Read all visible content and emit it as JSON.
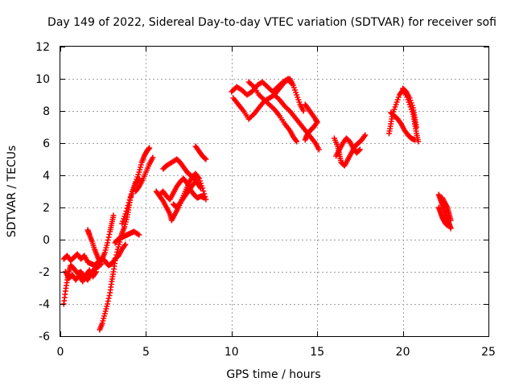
{
  "chart_data": {
    "type": "scatter",
    "title": "Day 149 of 2022, Sidereal Day-to-day VTEC variation (SDTVAR) for receiver sofi",
    "xlabel": "GPS time / hours",
    "ylabel": "SDTVAR / TECUs",
    "xlim": [
      0,
      25
    ],
    "ylim": [
      -6,
      12
    ],
    "x_ticks": [
      0,
      5,
      10,
      15,
      20,
      25
    ],
    "y_ticks": [
      -6,
      -4,
      -2,
      0,
      2,
      4,
      6,
      8,
      10,
      12
    ],
    "grid": true,
    "color": "#ff0000",
    "marker": "plus",
    "series": [
      {
        "points": [
          [
            0.2,
            -4.0
          ],
          [
            0.3,
            -3.2
          ],
          [
            0.4,
            -2.5
          ],
          [
            0.5,
            -2.0
          ],
          [
            0.6,
            -1.6
          ],
          [
            0.8,
            -1.8
          ],
          [
            1.0,
            -2.1
          ],
          [
            1.2,
            -2.0
          ],
          [
            1.4,
            -2.3
          ],
          [
            1.6,
            -2.5
          ],
          [
            1.8,
            -2.1
          ],
          [
            2.0,
            -1.8
          ],
          [
            2.2,
            -1.7
          ],
          [
            2.4,
            -1.5
          ]
        ]
      },
      {
        "points": [
          [
            0.2,
            -1.2
          ],
          [
            0.4,
            -1.0
          ],
          [
            0.6,
            -1.3
          ],
          [
            0.8,
            -1.1
          ],
          [
            1.0,
            -0.9
          ],
          [
            1.2,
            -1.2
          ],
          [
            1.4,
            -1.0
          ],
          [
            1.6,
            -1.4
          ],
          [
            1.8,
            -1.5
          ],
          [
            2.0,
            -1.6
          ],
          [
            2.2,
            -1.4
          ],
          [
            2.4,
            -1.2
          ],
          [
            2.6,
            -1.3
          ],
          [
            2.8,
            -1.6
          ],
          [
            3.0,
            -1.5
          ],
          [
            3.2,
            -1.2
          ],
          [
            3.4,
            -1.0
          ],
          [
            3.6,
            -0.6
          ],
          [
            3.8,
            -0.3
          ]
        ]
      },
      {
        "points": [
          [
            0.3,
            -2.0
          ],
          [
            0.5,
            -2.4
          ],
          [
            0.7,
            -2.2
          ],
          [
            0.9,
            -2.5
          ],
          [
            1.1,
            -2.2
          ],
          [
            1.3,
            -2.6
          ],
          [
            1.5,
            -2.2
          ],
          [
            1.7,
            -1.9
          ],
          [
            1.9,
            -2.3
          ],
          [
            2.1,
            -2.0
          ]
        ]
      },
      {
        "points": [
          [
            2.3,
            -5.6
          ],
          [
            2.45,
            -5.2
          ],
          [
            2.6,
            -4.6
          ],
          [
            2.75,
            -4.0
          ],
          [
            2.9,
            -3.3
          ],
          [
            3.0,
            -2.6
          ],
          [
            3.1,
            -2.0
          ],
          [
            3.2,
            -1.3
          ],
          [
            3.35,
            -0.6
          ],
          [
            3.5,
            0.0
          ],
          [
            3.6,
            0.4
          ],
          [
            3.75,
            0.8
          ],
          [
            3.9,
            1.4
          ],
          [
            4.0,
            2.0
          ],
          [
            4.1,
            2.6
          ],
          [
            4.25,
            3.1
          ],
          [
            4.4,
            3.6
          ],
          [
            4.6,
            4.2
          ],
          [
            4.75,
            4.8
          ],
          [
            4.9,
            5.2
          ],
          [
            5.05,
            5.5
          ],
          [
            5.2,
            5.7
          ]
        ]
      },
      {
        "points": [
          [
            1.6,
            0.6
          ],
          [
            1.7,
            0.3
          ],
          [
            1.85,
            -0.1
          ],
          [
            2.0,
            -0.6
          ],
          [
            2.15,
            -1.0
          ],
          [
            2.3,
            -1.4
          ],
          [
            2.45,
            -1.2
          ],
          [
            2.6,
            -0.8
          ],
          [
            2.75,
            -0.2
          ],
          [
            2.9,
            0.5
          ],
          [
            3.0,
            1.0
          ],
          [
            3.1,
            1.5
          ]
        ]
      },
      {
        "points": [
          [
            3.2,
            -0.2
          ],
          [
            3.35,
            0.0
          ],
          [
            3.5,
            0.1
          ],
          [
            3.7,
            0.2
          ],
          [
            3.9,
            0.3
          ],
          [
            4.1,
            0.4
          ],
          [
            4.3,
            0.5
          ],
          [
            4.6,
            0.3
          ]
        ]
      },
      {
        "points": [
          [
            3.6,
            1.0
          ],
          [
            3.8,
            1.6
          ],
          [
            4.0,
            2.3
          ],
          [
            4.2,
            3.0
          ],
          [
            4.4,
            3.5
          ],
          [
            4.6,
            3.8
          ]
        ]
      },
      {
        "points": [
          [
            4.4,
            3.0
          ],
          [
            4.6,
            3.3
          ],
          [
            4.8,
            3.7
          ],
          [
            5.0,
            4.2
          ],
          [
            5.2,
            4.7
          ],
          [
            5.4,
            5.1
          ]
        ]
      },
      {
        "points": [
          [
            5.6,
            3.0
          ],
          [
            5.8,
            2.7
          ],
          [
            6.0,
            2.4
          ],
          [
            6.2,
            2.0
          ],
          [
            6.4,
            1.6
          ],
          [
            6.5,
            1.2
          ],
          [
            6.7,
            1.6
          ],
          [
            6.9,
            2.0
          ],
          [
            7.1,
            2.5
          ],
          [
            7.3,
            3.0
          ],
          [
            7.5,
            3.5
          ],
          [
            7.7,
            3.9
          ],
          [
            7.9,
            4.1
          ],
          [
            8.1,
            3.8
          ],
          [
            8.3,
            3.2
          ],
          [
            8.5,
            2.5
          ]
        ]
      },
      {
        "points": [
          [
            5.8,
            2.8
          ],
          [
            6.0,
            3.0
          ],
          [
            6.2,
            2.7
          ],
          [
            6.4,
            2.5
          ],
          [
            6.6,
            2.9
          ],
          [
            6.8,
            3.3
          ],
          [
            7.0,
            3.6
          ],
          [
            7.2,
            3.8
          ],
          [
            7.4,
            3.5
          ],
          [
            7.6,
            3.1
          ],
          [
            7.8,
            2.8
          ],
          [
            8.0,
            2.6
          ],
          [
            8.2,
            2.7
          ],
          [
            8.4,
            2.6
          ]
        ]
      },
      {
        "points": [
          [
            6.0,
            4.4
          ],
          [
            6.2,
            4.6
          ],
          [
            6.5,
            4.8
          ],
          [
            6.8,
            5.0
          ],
          [
            7.0,
            4.8
          ],
          [
            7.2,
            4.5
          ],
          [
            7.4,
            4.2
          ],
          [
            7.6,
            4.0
          ],
          [
            7.8,
            3.8
          ],
          [
            8.0,
            3.5
          ],
          [
            8.2,
            3.2
          ]
        ]
      },
      {
        "points": [
          [
            6.6,
            2.2
          ],
          [
            6.8,
            2.0
          ],
          [
            7.0,
            2.3
          ],
          [
            7.2,
            2.6
          ],
          [
            7.4,
            2.9
          ],
          [
            7.6,
            3.2
          ],
          [
            7.8,
            3.5
          ]
        ]
      },
      {
        "points": [
          [
            7.9,
            5.8
          ],
          [
            8.1,
            5.5
          ],
          [
            8.3,
            5.2
          ],
          [
            8.5,
            5.0
          ]
        ]
      },
      {
        "points": [
          [
            10.0,
            9.2
          ],
          [
            10.3,
            9.5
          ],
          [
            10.6,
            9.3
          ],
          [
            10.9,
            9.0
          ],
          [
            11.2,
            9.2
          ],
          [
            11.5,
            9.6
          ],
          [
            11.8,
            9.8
          ],
          [
            12.1,
            9.5
          ],
          [
            12.4,
            9.2
          ],
          [
            12.7,
            9.5
          ],
          [
            13.0,
            9.8
          ],
          [
            13.3,
            10.0
          ],
          [
            13.5,
            9.7
          ]
        ]
      },
      {
        "points": [
          [
            10.1,
            8.8
          ],
          [
            10.4,
            8.4
          ],
          [
            10.7,
            8.0
          ],
          [
            11.0,
            7.5
          ],
          [
            11.3,
            7.8
          ],
          [
            11.6,
            8.2
          ],
          [
            11.9,
            8.6
          ],
          [
            12.2,
            8.8
          ],
          [
            12.5,
            9.0
          ],
          [
            12.8,
            8.7
          ],
          [
            13.1,
            8.3
          ],
          [
            13.4,
            8.0
          ],
          [
            13.7,
            7.6
          ],
          [
            14.0,
            7.2
          ],
          [
            14.3,
            6.8
          ],
          [
            14.6,
            6.4
          ],
          [
            14.9,
            6.0
          ],
          [
            15.1,
            5.6
          ]
        ]
      },
      {
        "points": [
          [
            11.0,
            9.8
          ],
          [
            11.3,
            9.5
          ],
          [
            11.6,
            9.0
          ],
          [
            11.9,
            8.7
          ],
          [
            12.2,
            8.4
          ],
          [
            12.5,
            8.1
          ],
          [
            12.8,
            7.7
          ],
          [
            13.1,
            7.2
          ],
          [
            13.4,
            6.8
          ],
          [
            13.6,
            6.4
          ],
          [
            13.8,
            6.1
          ]
        ]
      },
      {
        "points": [
          [
            12.5,
            9.0
          ],
          [
            12.8,
            9.4
          ],
          [
            13.1,
            9.8
          ],
          [
            13.4,
            10.0
          ],
          [
            13.6,
            9.6
          ],
          [
            13.8,
            9.0
          ],
          [
            14.0,
            8.4
          ],
          [
            14.2,
            8.0
          ]
        ]
      },
      {
        "points": [
          [
            14.3,
            8.4
          ],
          [
            14.5,
            8.1
          ],
          [
            14.7,
            7.8
          ],
          [
            14.9,
            7.5
          ],
          [
            15.0,
            7.3
          ],
          [
            14.8,
            7.0
          ],
          [
            14.6,
            6.8
          ],
          [
            14.4,
            6.5
          ],
          [
            14.3,
            6.2
          ]
        ]
      },
      {
        "points": [
          [
            16.0,
            6.3
          ],
          [
            16.2,
            5.8
          ],
          [
            16.3,
            5.3
          ],
          [
            16.4,
            4.8
          ],
          [
            16.6,
            4.6
          ],
          [
            16.8,
            5.0
          ],
          [
            17.0,
            5.4
          ],
          [
            17.2,
            5.8
          ],
          [
            17.4,
            6.0
          ],
          [
            17.6,
            6.2
          ],
          [
            17.8,
            6.5
          ]
        ]
      },
      {
        "points": [
          [
            16.1,
            5.2
          ],
          [
            16.3,
            5.6
          ],
          [
            16.5,
            6.0
          ],
          [
            16.7,
            6.3
          ],
          [
            16.9,
            6.1
          ],
          [
            17.1,
            5.7
          ],
          [
            17.3,
            5.4
          ],
          [
            17.5,
            5.6
          ]
        ]
      },
      {
        "points": [
          [
            19.2,
            6.6
          ],
          [
            19.3,
            7.2
          ],
          [
            19.4,
            7.8
          ],
          [
            19.6,
            8.4
          ],
          [
            19.8,
            9.0
          ],
          [
            20.0,
            9.3
          ],
          [
            20.2,
            9.0
          ],
          [
            20.4,
            8.4
          ],
          [
            20.6,
            7.8
          ],
          [
            20.7,
            7.2
          ],
          [
            20.8,
            6.6
          ],
          [
            20.9,
            6.1
          ]
        ]
      },
      {
        "points": [
          [
            19.3,
            7.9
          ],
          [
            19.5,
            7.7
          ],
          [
            19.7,
            7.5
          ],
          [
            19.9,
            7.2
          ],
          [
            20.1,
            6.8
          ],
          [
            20.3,
            6.5
          ],
          [
            20.5,
            6.3
          ],
          [
            20.7,
            6.2
          ]
        ]
      },
      {
        "points": [
          [
            20.0,
            9.4
          ],
          [
            20.2,
            9.2
          ],
          [
            20.4,
            8.8
          ],
          [
            20.6,
            8.2
          ],
          [
            20.7,
            7.6
          ],
          [
            20.8,
            7.0
          ]
        ]
      },
      {
        "points": [
          [
            22.1,
            2.8
          ],
          [
            22.2,
            2.5
          ],
          [
            22.3,
            2.2
          ],
          [
            22.4,
            1.9
          ],
          [
            22.5,
            1.6
          ],
          [
            22.6,
            1.3
          ],
          [
            22.7,
            1.0
          ],
          [
            22.8,
            0.7
          ]
        ]
      },
      {
        "points": [
          [
            22.1,
            2.0
          ],
          [
            22.2,
            1.7
          ],
          [
            22.3,
            1.4
          ],
          [
            22.4,
            1.2
          ],
          [
            22.5,
            1.0
          ],
          [
            22.6,
            0.9
          ]
        ]
      },
      {
        "points": [
          [
            22.3,
            2.6
          ],
          [
            22.45,
            2.3
          ],
          [
            22.6,
            2.0
          ],
          [
            22.7,
            1.6
          ],
          [
            22.8,
            1.2
          ]
        ]
      }
    ]
  }
}
